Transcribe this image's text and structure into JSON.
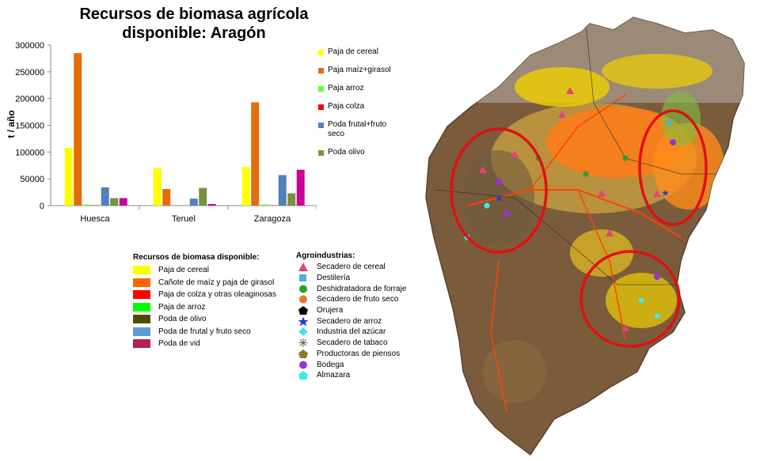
{
  "chart_data": {
    "type": "bar",
    "title": "Recursos de biomasa agrícola disponible: Aragón",
    "ylabel": "t / año",
    "xlabel": "",
    "ylim": [
      0,
      300000
    ],
    "yticks": [
      "0",
      "50000",
      "100000",
      "150000",
      "200000",
      "250000",
      "300000"
    ],
    "categories": [
      "Huesca",
      "Teruel",
      "Zaragoza"
    ],
    "series": [
      {
        "name": "Paja de cereal",
        "color": "#ffff00",
        "values": [
          108000,
          70000,
          72000
        ]
      },
      {
        "name": "Paja maíz+girasol",
        "color": "#e46c0a",
        "values": [
          285000,
          31000,
          193000
        ]
      },
      {
        "name": "Paja arroz",
        "color": "#66ff33",
        "values": [
          2000,
          0,
          2000
        ]
      },
      {
        "name": "Paja colza",
        "color": "#ff0000",
        "values": [
          500,
          0,
          500
        ]
      },
      {
        "name": "Poda frutal+fruto seco",
        "color": "#4f81bd",
        "values": [
          34000,
          13000,
          57000
        ]
      },
      {
        "name": "Poda olivo",
        "color": "#77933c",
        "values": [
          14000,
          33000,
          23000
        ]
      },
      {
        "name": "",
        "color": "#cc0099",
        "values": [
          14000,
          3000,
          67000
        ]
      }
    ],
    "legend": "right"
  },
  "legend_biomasa": {
    "title": "Recursos de biomasa disponible:",
    "items": [
      {
        "label": "Paja de cereal",
        "color": "#ffff00"
      },
      {
        "label": "Cañote de maíz y paja de girasol",
        "color": "#ff6600"
      },
      {
        "label": "Paja de colza y otras oleaginosas",
        "color": "#ff0000"
      },
      {
        "label": "Paja de arroz",
        "color": "#00ff00"
      },
      {
        "label": "Poda de olivo",
        "color": "#4d4d00"
      },
      {
        "label": "Poda de frutal y fruto seco",
        "color": "#5b9bd5"
      },
      {
        "label": "Poda de vid",
        "color": "#b3214d"
      }
    ]
  },
  "legend_agroindustrias": {
    "title": "Agroindustrias:",
    "items": [
      {
        "label": "Secadero de cereal",
        "icon": "triangle-icon",
        "color": "#e0457b"
      },
      {
        "label": "Destilería",
        "icon": "square-icon",
        "color": "#4ab0e8"
      },
      {
        "label": "Deshidratadora de forraje",
        "icon": "circle-icon",
        "color": "#2e9e2e"
      },
      {
        "label": "Secadero de fruto seco",
        "icon": "circle-icon",
        "color": "#f07030"
      },
      {
        "label": "Orujera",
        "icon": "pentagon-icon",
        "color": "#000000"
      },
      {
        "label": "Secadero de arroz",
        "icon": "star-icon",
        "color": "#1a3fd6"
      },
      {
        "label": "Industria del azúcar",
        "icon": "diamond-icon",
        "color": "#40e0e8"
      },
      {
        "label": "Secadero de tabaco",
        "icon": "asterisk-icon",
        "color": "#666666"
      },
      {
        "label": "Productoras de piensos",
        "icon": "pentagon-icon",
        "color": "#8a7a2a"
      },
      {
        "label": "Bodega",
        "icon": "circle-icon",
        "color": "#9933cc"
      },
      {
        "label": "Almazara",
        "icon": "pentagon-icon",
        "color": "#40e8f0"
      }
    ]
  }
}
